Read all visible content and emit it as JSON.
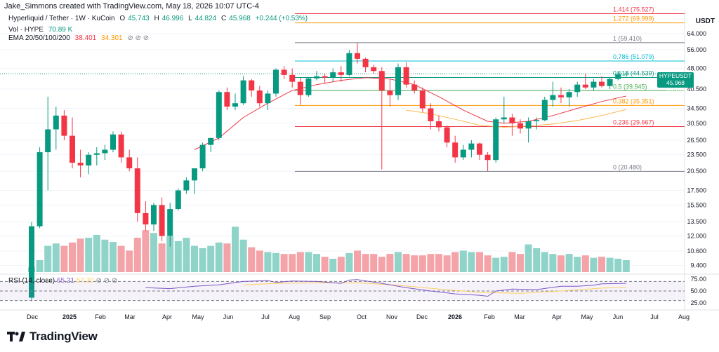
{
  "attribution": "Jake_Simmons created with TradingView.com, May 18, 2026 10:07 UTC-4",
  "symbol_line": {
    "title": "Hyperliquid / Tether · 1W · KuCoin",
    "o_label": "O",
    "o_val": "45.743",
    "h_label": "H",
    "h_val": "46.996",
    "l_label": "L",
    "l_val": "44.824",
    "c_label": "C",
    "c_val": "45.968",
    "change": "+0.244 (+0.53%)"
  },
  "vol_line": {
    "label": "Vol · HYPE",
    "value": "70.89 K"
  },
  "ema_line": {
    "label": "EMA 20/50/100/200",
    "v1": "38.401",
    "v2": "34.301",
    "icons": "⊘  ⊘  ⊘"
  },
  "rsi_legend": {
    "label": "RSI (14, close)",
    "v1": "65.21",
    "v2": "57.20",
    "icons": "⊘  ⊘  ⊘"
  },
  "currency": "USDT",
  "price_tag": {
    "symbol": "HYPEUSDT",
    "value": "45.968",
    "time": "6d 10h"
  },
  "logo_text": "TradingView",
  "colors": {
    "up": "#089981",
    "down": "#f23645",
    "vol_up": "#8fd3c9",
    "vol_down": "#f4a3a8",
    "ema_red": "#f23645",
    "ema_orange": "#ffb74d",
    "rsi": "#7e57c2"
  },
  "chart_data": {
    "type": "candlestick",
    "y_scale": "log",
    "price_axis_ticks": [
      "64.000",
      "56.000",
      "48.000",
      "40.500",
      "34.500",
      "30.500",
      "26.500",
      "23.500",
      "20.500",
      "17.500",
      "15.500",
      "13.500",
      "12.000",
      "10.600",
      "9.400"
    ],
    "x_axis_labels": [
      "Dec",
      "2025",
      "Feb",
      "Mar",
      "Apr",
      "May",
      "Jun",
      "Jul",
      "Aug",
      "Sep",
      "Oct",
      "Nov",
      "Dec",
      "2026",
      "Feb",
      "Mar",
      "Apr",
      "May",
      "Jun",
      "Jul",
      "Aug"
    ],
    "fib_levels": [
      {
        "label": "1.414 (75.527)",
        "value": 75.527,
        "color": "#f23645"
      },
      {
        "label": "1.272 (69.999)",
        "value": 69.999,
        "color": "#ff9800"
      },
      {
        "label": "1 (59.410)",
        "value": 59.41,
        "color": "#787b86"
      },
      {
        "label": "0.786 (51.079)",
        "value": 51.079,
        "color": "#00bcd4"
      },
      {
        "label": "0.618 (44.539)",
        "value": 44.539,
        "color": "#089981"
      },
      {
        "label": "0.5 (39.945)",
        "value": 39.945,
        "color": "#4caf50"
      },
      {
        "label": "0.382 (35.351)",
        "value": 35.351,
        "color": "#ff9800"
      },
      {
        "label": "0.236 (29.667)",
        "value": 29.667,
        "color": "#f23645"
      },
      {
        "label": "0 (20.480)",
        "value": 20.48,
        "color": "#787b86"
      }
    ],
    "candles": [
      [
        7.2,
        13.5,
        7.0,
        13.0
      ],
      [
        13.0,
        25.0,
        12.8,
        24.0
      ],
      [
        24.0,
        38.0,
        17.5,
        29.0
      ],
      [
        29.0,
        35.0,
        24.5,
        32.5
      ],
      [
        32.5,
        34.0,
        26.5,
        27.5
      ],
      [
        27.5,
        32.0,
        21.0,
        22.0
      ],
      [
        22.0,
        24.5,
        19.5,
        21.5
      ],
      [
        21.5,
        24.0,
        20.0,
        23.5
      ],
      [
        23.5,
        25.0,
        21.5,
        23.8
      ],
      [
        23.8,
        25.5,
        22.5,
        24.5
      ],
      [
        24.5,
        28.5,
        24.0,
        27.8
      ],
      [
        27.8,
        28.5,
        22.0,
        23.0
      ],
      [
        23.0,
        24.5,
        20.5,
        21.0
      ],
      [
        21.0,
        23.0,
        13.5,
        14.5
      ],
      [
        14.5,
        16.0,
        12.5,
        13.2
      ],
      [
        13.2,
        15.8,
        12.5,
        15.5
      ],
      [
        15.5,
        16.5,
        11.5,
        12.0
      ],
      [
        12.0,
        15.8,
        11.0,
        15.0
      ],
      [
        15.0,
        17.8,
        14.8,
        17.5
      ],
      [
        17.5,
        19.5,
        17.0,
        19.0
      ],
      [
        19.0,
        21.0,
        17.0,
        21.0
      ],
      [
        21.0,
        26.0,
        20.5,
        25.5
      ],
      [
        25.5,
        27.0,
        24.0,
        27.0
      ],
      [
        27.0,
        40.0,
        26.5,
        39.5
      ],
      [
        39.5,
        41.0,
        34.0,
        35.0
      ],
      [
        35.0,
        39.0,
        34.0,
        36.0
      ],
      [
        36.0,
        45.0,
        35.5,
        43.5
      ],
      [
        43.5,
        44.0,
        38.0,
        40.0
      ],
      [
        40.0,
        41.5,
        35.0,
        36.0
      ],
      [
        36.0,
        40.0,
        34.0,
        39.0
      ],
      [
        39.0,
        48.0,
        38.0,
        47.5
      ],
      [
        47.5,
        49.0,
        44.0,
        45.5
      ],
      [
        45.5,
        48.0,
        41.0,
        43.0
      ],
      [
        43.0,
        44.5,
        35.5,
        38.5
      ],
      [
        38.5,
        44.5,
        38.0,
        44.2
      ],
      [
        44.2,
        47.0,
        43.5,
        45.0
      ],
      [
        45.0,
        46.0,
        42.5,
        44.5
      ],
      [
        44.5,
        48.0,
        43.0,
        46.5
      ],
      [
        46.5,
        49.0,
        43.0,
        45.5
      ],
      [
        45.5,
        56.0,
        45.0,
        54.5
      ],
      [
        54.5,
        59.41,
        50.0,
        52.0
      ],
      [
        52.0,
        52.5,
        46.5,
        48.5
      ],
      [
        48.5,
        49.5,
        46.0,
        47.0
      ],
      [
        47.0,
        48.5,
        20.8,
        40.0
      ],
      [
        40.0,
        44.0,
        35.0,
        38.5
      ],
      [
        38.5,
        50.0,
        37.0,
        48.5
      ],
      [
        48.5,
        50.5,
        41.0,
        42.0
      ],
      [
        42.0,
        43.5,
        39.0,
        40.0
      ],
      [
        40.0,
        41.0,
        33.5,
        34.5
      ],
      [
        34.5,
        36.0,
        29.0,
        31.0
      ],
      [
        31.0,
        32.5,
        28.5,
        29.5
      ],
      [
        29.5,
        30.0,
        25.0,
        26.0
      ],
      [
        26.0,
        27.5,
        22.0,
        23.0
      ],
      [
        23.0,
        25.5,
        22.5,
        24.5
      ],
      [
        24.5,
        26.5,
        23.0,
        25.8
      ],
      [
        25.8,
        26.0,
        22.5,
        23.5
      ],
      [
        23.5,
        24.0,
        20.5,
        22.5
      ],
      [
        22.5,
        32.0,
        22.0,
        31.5
      ],
      [
        31.5,
        38.0,
        30.5,
        32.0
      ],
      [
        32.0,
        33.0,
        27.5,
        30.5
      ],
      [
        30.5,
        31.5,
        28.0,
        29.2
      ],
      [
        29.2,
        32.0,
        26.0,
        31.0
      ],
      [
        31.0,
        32.0,
        29.0,
        31.3
      ],
      [
        31.3,
        38.0,
        31.0,
        37.0
      ],
      [
        37.0,
        43.0,
        35.0,
        38.5
      ],
      [
        38.5,
        41.0,
        36.0,
        37.8
      ],
      [
        37.8,
        40.5,
        35.0,
        39.5
      ],
      [
        39.5,
        43.0,
        38.0,
        42.0
      ],
      [
        42.0,
        46.0,
        40.5,
        41.0
      ],
      [
        41.0,
        44.0,
        40.0,
        43.0
      ],
      [
        43.0,
        45.0,
        41.0,
        41.5
      ],
      [
        41.5,
        44.5,
        40.5,
        44.0
      ],
      [
        44.0,
        47.0,
        43.5,
        45.7
      ],
      [
        45.7,
        47.0,
        44.8,
        45.97
      ]
    ],
    "volume_relative": [
      0.1,
      0.25,
      0.55,
      0.6,
      0.55,
      0.62,
      0.7,
      0.72,
      0.78,
      0.68,
      0.63,
      0.55,
      0.45,
      0.72,
      0.88,
      0.82,
      0.6,
      0.75,
      0.65,
      0.72,
      0.55,
      0.5,
      0.55,
      0.62,
      0.6,
      0.95,
      0.68,
      0.52,
      0.45,
      0.42,
      0.4,
      0.38,
      0.38,
      0.42,
      0.42,
      0.38,
      0.32,
      0.28,
      0.32,
      0.4,
      0.45,
      0.38,
      0.38,
      0.32,
      0.38,
      0.42,
      0.38,
      0.35,
      0.35,
      0.38,
      0.38,
      0.35,
      0.42,
      0.45,
      0.42,
      0.42,
      0.35,
      0.3,
      0.32,
      0.42,
      0.38,
      0.58,
      0.5,
      0.42,
      0.38,
      0.35,
      0.38,
      0.32,
      0.35,
      0.3,
      0.32,
      0.3,
      0.28,
      0.25
    ],
    "ema_red": [
      [
        20,
        24.5
      ],
      [
        23,
        27
      ],
      [
        26,
        32
      ],
      [
        29,
        36
      ],
      [
        32,
        40
      ],
      [
        35,
        42
      ],
      [
        38,
        43.5
      ],
      [
        41,
        44.5
      ],
      [
        44,
        44
      ],
      [
        47,
        42
      ],
      [
        50,
        38
      ],
      [
        53,
        34
      ],
      [
        56,
        31
      ],
      [
        58,
        30.5
      ],
      [
        61,
        31
      ],
      [
        64,
        32.5
      ],
      [
        67,
        34.5
      ],
      [
        70,
        36.5
      ],
      [
        73,
        38.2
      ]
    ],
    "ema_orange": [
      [
        46,
        34
      ],
      [
        49,
        33
      ],
      [
        52,
        31.5
      ],
      [
        55,
        30
      ],
      [
        58,
        29.5
      ],
      [
        61,
        29.8
      ],
      [
        64,
        30.3
      ],
      [
        67,
        31.2
      ],
      [
        70,
        32.5
      ],
      [
        73,
        34.2
      ]
    ],
    "rsi": {
      "ticks": [
        "75.00",
        "50.00",
        "25.00"
      ],
      "range": [
        0,
        100
      ],
      "values": [
        [
          14,
          57
        ],
        [
          17,
          55
        ],
        [
          20,
          60
        ],
        [
          23,
          63
        ],
        [
          26,
          70
        ],
        [
          29,
          72
        ],
        [
          30,
          68
        ],
        [
          32,
          71
        ],
        [
          35,
          70
        ],
        [
          38,
          66
        ],
        [
          39,
          73
        ],
        [
          40,
          74
        ],
        [
          43,
          66
        ],
        [
          46,
          57
        ],
        [
          49,
          50
        ],
        [
          52,
          44
        ],
        [
          55,
          41
        ],
        [
          56,
          39
        ],
        [
          57,
          50
        ],
        [
          59,
          54
        ],
        [
          62,
          53
        ],
        [
          65,
          60
        ],
        [
          67,
          60
        ],
        [
          69,
          62
        ],
        [
          70,
          65
        ],
        [
          73,
          66
        ]
      ],
      "signal": [
        [
          26,
          63
        ],
        [
          30,
          66
        ],
        [
          35,
          67
        ],
        [
          40,
          67
        ],
        [
          45,
          62
        ],
        [
          50,
          54
        ],
        [
          55,
          47
        ],
        [
          60,
          45
        ],
        [
          65,
          50
        ],
        [
          70,
          56
        ],
        [
          73,
          58
        ]
      ]
    }
  }
}
